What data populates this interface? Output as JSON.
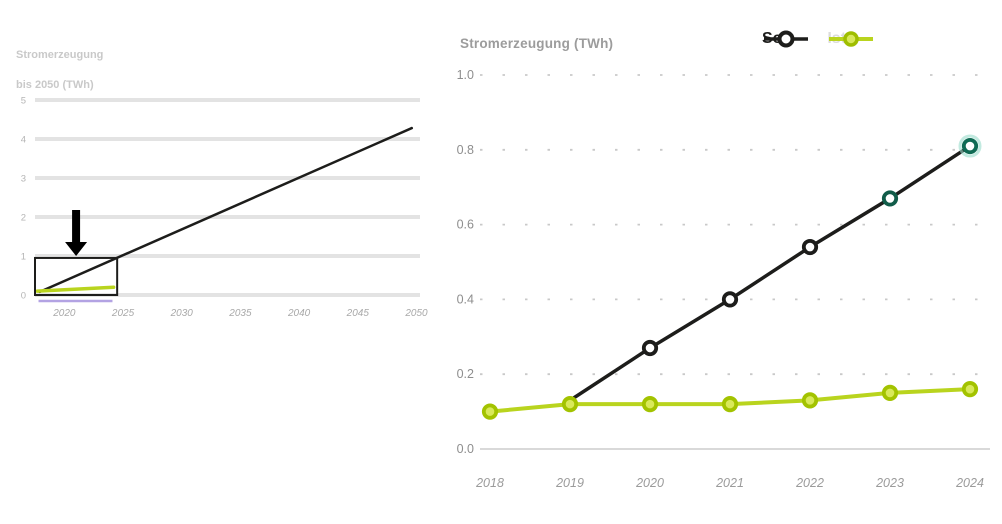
{
  "page": {
    "background": "#ffffff"
  },
  "left_chart": {
    "title_line1": "Stromerzeugung",
    "title_line2": "bis 2050 (TWh)"
  },
  "right_chart": {
    "title": "Stromerzeugung (TWh)"
  },
  "legend": {
    "entries": [
      {
        "label": "Soll",
        "line_color": "#1d1d1b",
        "marker_fill": "#ffffff",
        "marker_stroke": "#1d1d1b",
        "label_color": "#1d1d1b"
      },
      {
        "label": "Ist",
        "line_color": "#b9d41e",
        "marker_fill": "#d9e95a",
        "marker_stroke": "#9fbe00",
        "label_color": "#dcdcdc"
      }
    ]
  },
  "chart_data": [
    {
      "type": "line",
      "title_lines": [
        "Stromerzeugung",
        "bis 2050 (TWh)"
      ],
      "xlabel": "",
      "ylabel": "TWh",
      "xlim": [
        2017.5,
        2050.3
      ],
      "ylim": [
        0,
        5
      ],
      "xticks": {
        "values": [
          2020,
          2025,
          2030,
          2035,
          2040,
          2045,
          2050
        ],
        "labels": [
          "2020",
          "2025",
          "2030",
          "2035",
          "2040",
          "2045",
          "2050"
        ]
      },
      "yticks": {
        "values": [
          5,
          4,
          3,
          2,
          1,
          0
        ],
        "labels": [
          "5",
          "4",
          "3",
          "2",
          "1",
          "0"
        ]
      },
      "grid": "solid-horizontal",
      "grid_color": "#e3e3e3",
      "series": [
        {
          "name": "Soll",
          "color": "#1d1d1b",
          "width": 2.5,
          "x": [
            2017.9,
            2049.6
          ],
          "values": [
            0.08,
            4.28
          ]
        },
        {
          "name": "Ist",
          "color": "#b9d41e",
          "width": 3.5,
          "x": [
            2017.7,
            2024.2
          ],
          "values": [
            0.1,
            0.2
          ]
        }
      ],
      "annotations": {
        "zoom_box": {
          "x": [
            2017.5,
            2024.5
          ],
          "y": [
            0,
            0.95
          ],
          "stroke": "#1d1d1b"
        },
        "down_arrow": {
          "x": 2021.0,
          "y_top": 2.18,
          "y_tip": 1.0,
          "color": "#000000"
        },
        "underline": {
          "x": [
            2017.8,
            2024.1
          ],
          "color": "#b3a3e3"
        }
      }
    },
    {
      "type": "line",
      "title": "Stromerzeugung (TWh)",
      "xlabel": "",
      "ylabel": "TWh",
      "xlim": [
        2018,
        2024
      ],
      "ylim": [
        0,
        1.05
      ],
      "xticks": {
        "values": [
          2018,
          2019,
          2020,
          2021,
          2022,
          2023,
          2024
        ],
        "labels": [
          "2018",
          "2019",
          "2020",
          "2021",
          "2022",
          "2023",
          "2024"
        ]
      },
      "yticks": {
        "values": [
          1.0,
          0.8,
          0.6,
          0.4,
          0.2,
          0.0
        ],
        "labels": [
          "1.0",
          "0.8",
          "0.6",
          "0.4",
          "0.2",
          "0.0"
        ]
      },
      "grid": "dotted-horizontal",
      "grid_color": "#c9c9c9",
      "baseline_color": "#d9d9d9",
      "legend_position": "top-right",
      "series": [
        {
          "name": "Soll",
          "color": "#1d1d1b",
          "width": 3.5,
          "x": [
            2019,
            2020,
            2021,
            2022,
            2023,
            2024
          ],
          "values": [
            0.13,
            0.27,
            0.4,
            0.54,
            0.67,
            0.81
          ],
          "markers_at": [
            2020,
            2021,
            2022,
            2023,
            2024
          ],
          "marker_colors": [
            "#1d1d1b",
            "#1d1d1b",
            "#1d1d1b",
            "#115c49",
            "#0f6b54"
          ],
          "marker_halos": [
            null,
            null,
            null,
            null,
            "#9adccb"
          ],
          "marker_fill": "#ffffff"
        },
        {
          "name": "Ist",
          "color": "#b9d41e",
          "width": 4,
          "x": [
            2018,
            2019,
            2020,
            2021,
            2022,
            2023,
            2024
          ],
          "values": [
            0.1,
            0.12,
            0.12,
            0.12,
            0.13,
            0.15,
            0.16
          ],
          "markers_at": [
            2018,
            2019,
            2020,
            2021,
            2022,
            2023,
            2024
          ],
          "marker_colors": [
            "#a3c300",
            "#a3c300",
            "#a3c300",
            "#a3c300",
            "#a3c300",
            "#a3c300",
            "#a3c300"
          ],
          "marker_halos": [
            null,
            null,
            null,
            null,
            null,
            null,
            null
          ],
          "marker_fill": "#d9e95a"
        }
      ],
      "axis_label_color": "#9b9b9b"
    }
  ]
}
